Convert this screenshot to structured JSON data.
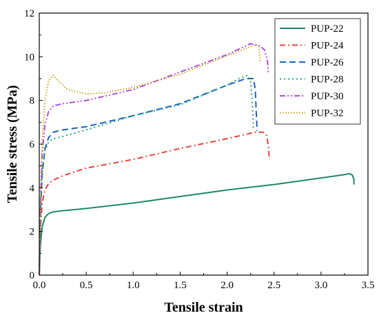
{
  "chart_data": {
    "type": "line",
    "title": "",
    "xlabel": "Tensile strain",
    "ylabel": "Tensile stress (MPa)",
    "xlim": [
      0.0,
      3.5
    ],
    "ylim": [
      0,
      12
    ],
    "xticks": [
      0.0,
      0.5,
      1.0,
      1.5,
      2.0,
      2.5,
      3.0,
      3.5
    ],
    "xtick_labels": [
      "0.0",
      "0.5",
      "1.0",
      "1.5",
      "2.0",
      "2.5",
      "3.0",
      "3.5"
    ],
    "yticks": [
      0,
      2,
      4,
      6,
      8,
      10,
      12
    ],
    "ytick_labels": [
      "0",
      "2",
      "4",
      "6",
      "8",
      "10",
      "12"
    ],
    "grid": false,
    "legend_position": "top-right",
    "series": [
      {
        "name": "PUP-22",
        "color": "#1a8a5c",
        "dash": "solid",
        "x": [
          0.0,
          0.01,
          0.03,
          0.06,
          0.1,
          0.15,
          0.25,
          0.5,
          1.0,
          1.5,
          2.0,
          2.5,
          3.0,
          3.25,
          3.3,
          3.33,
          3.35,
          3.35
        ],
        "y": [
          0.0,
          1.3,
          2.2,
          2.65,
          2.82,
          2.9,
          2.95,
          3.05,
          3.3,
          3.6,
          3.9,
          4.15,
          4.45,
          4.6,
          4.65,
          4.6,
          4.4,
          4.15
        ]
      },
      {
        "name": "PUP-24",
        "color": "#e8423a",
        "dash": "dashdot",
        "x": [
          0.0,
          0.01,
          0.03,
          0.06,
          0.1,
          0.15,
          0.25,
          0.5,
          1.0,
          1.5,
          2.0,
          2.3,
          2.38,
          2.42,
          2.44,
          2.45
        ],
        "y": [
          0.0,
          2.0,
          3.3,
          3.9,
          4.2,
          4.35,
          4.55,
          4.9,
          5.3,
          5.8,
          6.25,
          6.55,
          6.55,
          6.4,
          5.9,
          5.3
        ]
      },
      {
        "name": "PUP-26",
        "color": "#1a5fc2",
        "dash": "dash",
        "x": [
          0.0,
          0.01,
          0.03,
          0.06,
          0.1,
          0.15,
          0.25,
          0.5,
          1.0,
          1.5,
          2.0,
          2.2,
          2.28,
          2.3,
          2.31,
          2.32
        ],
        "y": [
          0.0,
          2.5,
          4.6,
          5.8,
          6.3,
          6.55,
          6.65,
          6.8,
          7.3,
          7.85,
          8.7,
          9.0,
          9.0,
          8.5,
          7.5,
          6.6
        ]
      },
      {
        "name": "PUP-28",
        "color": "#1aa86b",
        "dash": "dot",
        "x": [
          0.0,
          0.01,
          0.03,
          0.06,
          0.1,
          0.15,
          0.25,
          0.5,
          1.0,
          1.5,
          2.0,
          2.15,
          2.22,
          2.25,
          2.27,
          2.28
        ],
        "y": [
          0.0,
          2.5,
          4.6,
          5.7,
          6.1,
          6.25,
          6.35,
          6.65,
          7.3,
          7.8,
          8.7,
          9.05,
          9.15,
          8.9,
          7.7,
          6.75
        ]
      },
      {
        "name": "PUP-30",
        "color": "#b04ce0",
        "dash": "dashdotdot",
        "x": [
          0.0,
          0.01,
          0.03,
          0.06,
          0.1,
          0.15,
          0.25,
          0.5,
          1.0,
          1.5,
          2.0,
          2.25,
          2.35,
          2.4,
          2.43,
          2.44
        ],
        "y": [
          0.0,
          3.0,
          5.5,
          6.9,
          7.5,
          7.75,
          7.85,
          8.0,
          8.5,
          9.3,
          10.1,
          10.6,
          10.5,
          10.3,
          9.8,
          9.2
        ]
      },
      {
        "name": "PUP-32",
        "color": "#c8a015",
        "dash": "shortdot",
        "x": [
          0.0,
          0.01,
          0.03,
          0.06,
          0.1,
          0.15,
          0.2,
          0.3,
          0.5,
          0.7,
          1.0,
          1.5,
          2.0,
          2.3,
          2.34,
          2.35
        ],
        "y": [
          0.0,
          3.0,
          6.0,
          8.0,
          8.9,
          9.15,
          8.9,
          8.5,
          8.3,
          8.35,
          8.6,
          9.2,
          10.05,
          10.55,
          10.45,
          9.8
        ]
      }
    ]
  }
}
